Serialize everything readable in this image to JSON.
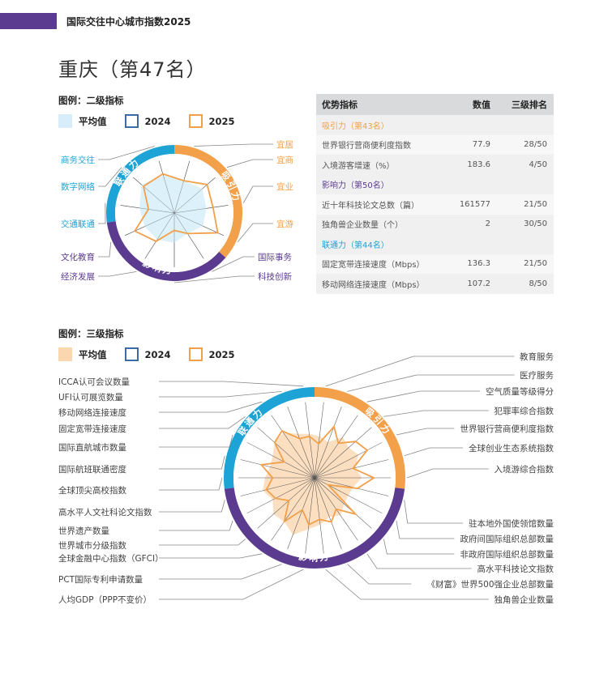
{
  "header": {
    "title": "国际交往中心城市指数2025"
  },
  "city_title": "重庆（第47名）",
  "legend1": {
    "title": "图例：二级指标",
    "avg": "平均值",
    "y2024": "2024",
    "y2025": "2025"
  },
  "legend2": {
    "title": "图例：三级指标",
    "avg": "平均值",
    "y2024": "2024",
    "y2025": "2025"
  },
  "colors": {
    "attract": "#f2a04a",
    "influence": "#5b3b8f",
    "connect": "#1ea3d6",
    "avg_light_blue": "#d7eefa",
    "avg_light_orange": "#fbd7b0",
    "y2025": "#f2a04a",
    "y2024": "#3f6aa8"
  },
  "table": {
    "headers": {
      "indicator": "优势指标",
      "value": "数值",
      "rank": "三级排名"
    },
    "groups": [
      {
        "name": "吸引力（第43名）",
        "color": "#f2a04a",
        "rows": [
          {
            "indicator": "世界银行营商便利度指数",
            "value": "77.9",
            "rank": "28/50"
          },
          {
            "indicator": "入境游客增速（%）",
            "value": "183.6",
            "rank": "4/50"
          }
        ]
      },
      {
        "name": "影响力（第50名）",
        "color": "#5b3b8f",
        "rows": [
          {
            "indicator": "近十年科技论文总数（篇）",
            "value": "161577",
            "rank": "21/50"
          },
          {
            "indicator": "独角兽企业数量（个）",
            "value": "2",
            "rank": "30/50"
          }
        ]
      },
      {
        "name": "联通力（第44名）",
        "color": "#1ea3d6",
        "rows": [
          {
            "indicator": "固定宽带连接速度（Mbps）",
            "value": "136.3",
            "rank": "21/50"
          },
          {
            "indicator": "移动网络连接速度（Mbps）",
            "value": "107.2",
            "rank": "8/50"
          }
        ]
      }
    ]
  },
  "radar1": {
    "segments": [
      {
        "label": "吸引力"
      },
      {
        "label": "影响力"
      },
      {
        "label": "联通力"
      }
    ],
    "labels": [
      "宜居",
      "宜商",
      "宜业",
      "宜游",
      "国际事务",
      "科技创新",
      "经济发展",
      "文化教育",
      "交通联通",
      "数字网络",
      "商务交往"
    ],
    "avg_values": [
      0.62,
      0.68,
      0.6,
      0.58,
      0.45,
      0.55,
      0.58,
      0.6,
      0.65,
      0.8,
      0.72
    ],
    "v2025_values": [
      0.62,
      0.8,
      0.72,
      0.88,
      0.45,
      0.32,
      0.62,
      0.8,
      0.48,
      0.75,
      0.75
    ]
  },
  "radar2": {
    "segments": [
      {
        "label": "吸引力"
      },
      {
        "label": "影响力"
      },
      {
        "label": "联通力"
      }
    ],
    "labels": [
      "教育服务",
      "医疗服务",
      "空气质量等级得分",
      "犯罪率综合指数",
      "世界银行营商便利度指数",
      "全球创业生态系统指数",
      "入境游综合指数",
      "驻本地外国使领馆数量",
      "政府间国际组织总部数量",
      "非政府国际组织总部数量",
      "高水平科技论文指数",
      "《财富》世界500强企业总部数量",
      "独角兽企业数量",
      "人均GDP（PPP不变价）",
      "PCT国际专利申请数量",
      "全球金融中心指数（GFCI）",
      "世界城市分级指数",
      "世界遗产数量",
      "高水平人文社科论文指数",
      "全球顶尖高校指数",
      "国际航班联通密度",
      "国际直航城市数量",
      "固定宽带连接速度",
      "移动网络连接速度",
      "UFI认可展览数量",
      "ICCA认可会议数量"
    ],
    "avg_values": [
      0.55,
      0.5,
      0.65,
      0.6,
      0.65,
      0.55,
      0.62,
      0.52,
      0.5,
      0.52,
      0.6,
      0.55,
      0.62,
      0.68,
      0.8,
      0.7,
      0.72,
      0.62,
      0.7,
      0.65,
      0.6,
      0.62,
      0.7,
      0.72,
      0.62,
      0.58
    ],
    "v2025_values": [
      0.45,
      0.72,
      0.55,
      0.72,
      0.78,
      0.52,
      0.78,
      0.58,
      0.2,
      0.72,
      0.5,
      0.62,
      0.55,
      0.62,
      0.45,
      0.7,
      0.45,
      0.58,
      0.65,
      0.55,
      0.72,
      0.45,
      0.7,
      0.75,
      0.55,
      0.55
    ]
  }
}
